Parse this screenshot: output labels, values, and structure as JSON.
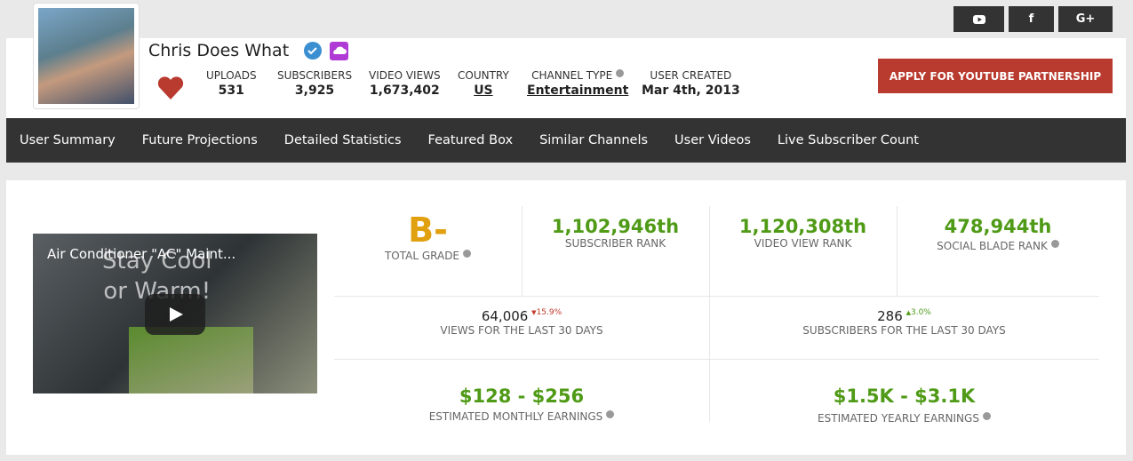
{
  "channel": {
    "name": "Chris Does What",
    "stats": [
      {
        "label": "UPLOADS",
        "value": "531"
      },
      {
        "label": "SUBSCRIBERS",
        "value": "3,925"
      },
      {
        "label": "VIDEO VIEWS",
        "value": "1,673,402"
      },
      {
        "label": "COUNTRY",
        "value": "US"
      },
      {
        "label": "CHANNEL TYPE",
        "value": "Entertainment"
      },
      {
        "label": "USER CREATED",
        "value": "Mar 4th, 2013"
      }
    ]
  },
  "social": [
    "f",
    "G+"
  ],
  "button": "APPLY FOR YOUTUBE PARTNERSHIP",
  "nav": [
    "User Summary",
    "Future Projections",
    "Detailed Statistics",
    "Featured Box",
    "Similar Channels",
    "User Videos",
    "Live Subscriber Count"
  ],
  "video": {
    "title": "Air Conditioner \"AC\" Maint...",
    "overlay": [
      "Stay Cool",
      "or Warm!"
    ]
  },
  "grade": {
    "value": "B-",
    "label": "TOTAL GRADE"
  },
  "ranks": [
    {
      "value": "1,102,946th",
      "label": "SUBSCRIBER RANK"
    },
    {
      "value": "1,120,308th",
      "label": "VIDEO VIEW RANK"
    },
    {
      "value": "478,944th",
      "label": "SOCIAL BLADE RANK"
    }
  ],
  "last30": [
    {
      "value": "64,006",
      "change": "15.9%",
      "label": "VIEWS FOR THE LAST 30 DAYS"
    },
    {
      "value": "286",
      "change": "3.0%",
      "label": "SUBSCRIBERS FOR THE LAST 30 DAYS"
    }
  ],
  "earnings": [
    {
      "value": "$128 - $256",
      "label": "ESTIMATED MONTHLY EARNINGS"
    },
    {
      "value": "$1.5K - $3.1K",
      "label": "ESTIMATED YEARLY EARNINGS"
    }
  ]
}
